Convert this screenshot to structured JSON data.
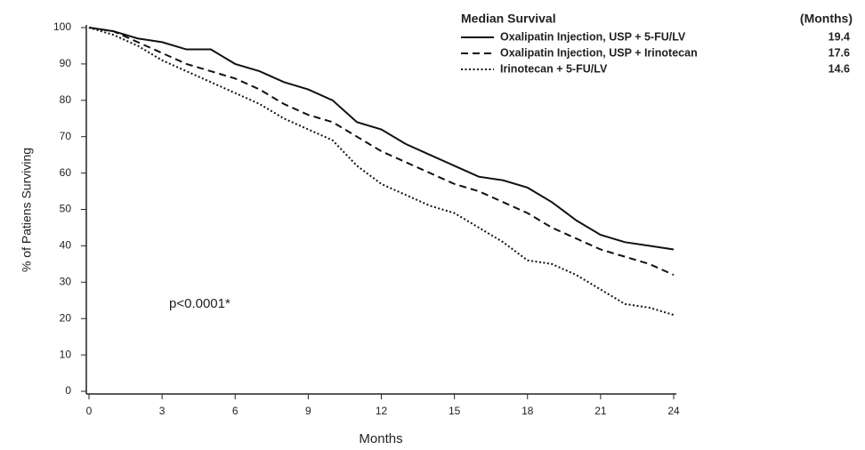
{
  "chart_data": {
    "type": "line",
    "x_label": "Months",
    "y_label": "% of Patiens Surviving",
    "legend_title": "Median Survival",
    "legend_unit": "(Months)",
    "annotation": "p<0.0001*",
    "x": [
      0,
      1,
      2,
      3,
      4,
      5,
      6,
      7,
      8,
      9,
      10,
      11,
      12,
      13,
      14,
      15,
      16,
      17,
      18,
      19,
      20,
      21,
      22,
      23,
      24
    ],
    "xlim": [
      0,
      24
    ],
    "xticks": [
      0,
      3,
      6,
      9,
      12,
      15,
      18,
      21,
      24
    ],
    "ylim": [
      0,
      100
    ],
    "yticks": [
      0,
      10,
      20,
      30,
      40,
      50,
      60,
      70,
      80,
      90,
      100
    ],
    "grid": false,
    "series": [
      {
        "name": "Oxalipatin Injection, USP + 5-FU/LV",
        "median": 19.4,
        "color": "#111111",
        "dash": "solid",
        "values": [
          100,
          99,
          97,
          96,
          94,
          94,
          90,
          88,
          85,
          83,
          80,
          74,
          72,
          68,
          65,
          62,
          59,
          58,
          56,
          52,
          47,
          43,
          41,
          40,
          39
        ]
      },
      {
        "name": "Oxalipatin Injection, USP + Irinotecan",
        "median": 17.6,
        "color": "#111111",
        "dash": "dashed",
        "values": [
          100,
          99,
          96,
          93,
          90,
          88,
          86,
          83,
          79,
          76,
          74,
          70,
          66,
          63,
          60,
          57,
          55,
          52,
          49,
          45,
          42,
          39,
          37,
          35,
          32
        ]
      },
      {
        "name": "Irinotecan + 5-FU/LV",
        "median": 14.6,
        "color": "#111111",
        "dash": "dotted",
        "values": [
          100,
          98,
          95,
          91,
          88,
          85,
          82,
          79,
          75,
          72,
          69,
          62,
          57,
          54,
          51,
          49,
          45,
          41,
          36,
          35,
          32,
          28,
          24,
          23,
          21
        ]
      }
    ]
  }
}
